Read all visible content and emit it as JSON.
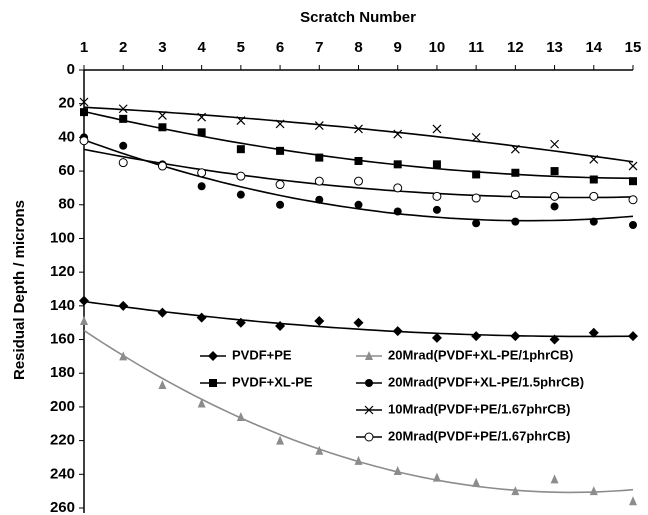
{
  "chart_data": {
    "type": "scatter",
    "x_label": "Scratch Number",
    "y_label": "Residual Depth / microns",
    "x": [
      1,
      2,
      3,
      4,
      5,
      6,
      7,
      8,
      9,
      10,
      11,
      12,
      13,
      14,
      15
    ],
    "xlim": [
      1,
      15
    ],
    "xticks": [
      1,
      2,
      3,
      4,
      5,
      6,
      7,
      8,
      9,
      10,
      11,
      12,
      13,
      14,
      15
    ],
    "ylim": [
      0,
      260
    ],
    "yticks": [
      0,
      20,
      40,
      60,
      80,
      100,
      120,
      140,
      160,
      180,
      200,
      220,
      240,
      260
    ],
    "y_inverted": true,
    "x_axis_position": "top",
    "trendline": true,
    "series": [
      {
        "name": "PVDF+PE",
        "color": "#000000",
        "marker": "diamond",
        "values": [
          137,
          140,
          144,
          147,
          150,
          152,
          149,
          150,
          155,
          159,
          158,
          158,
          160,
          156,
          158
        ]
      },
      {
        "name": "PVDF+XL-PE",
        "color": "#000000",
        "marker": "square",
        "values": [
          25,
          29,
          34,
          37,
          47,
          48,
          52,
          54,
          56,
          56,
          62,
          61,
          60,
          65,
          66
        ]
      },
      {
        "name": "20Mrad(PVDF+XL-PE/1phrCB)",
        "color": "#8c8c8c",
        "marker": "triangle",
        "values": [
          149,
          170,
          187,
          198,
          206,
          220,
          226,
          232,
          238,
          242,
          245,
          250,
          243,
          250,
          256
        ]
      },
      {
        "name": "20Mrad(PVDF+XL-PE/1.5phrCB)",
        "color": "#000000",
        "marker": "circle",
        "values": [
          40,
          45,
          56,
          69,
          74,
          80,
          77,
          80,
          84,
          83,
          91,
          90,
          81,
          90,
          92
        ]
      },
      {
        "name": "10Mrad(PVDF+PE/1.67phrCB)",
        "color": "#000000",
        "marker": "x",
        "values": [
          19,
          23,
          27,
          28,
          30,
          32,
          33,
          35,
          38,
          35,
          40,
          47,
          44,
          53,
          57
        ]
      },
      {
        "name": "20Mrad(PVDF+PE/1.67phrCB)",
        "color": "#000000",
        "marker": "circle-open",
        "values": [
          42,
          55,
          57,
          61,
          63,
          68,
          66,
          66,
          70,
          75,
          76,
          74,
          75,
          75,
          77
        ]
      }
    ]
  }
}
